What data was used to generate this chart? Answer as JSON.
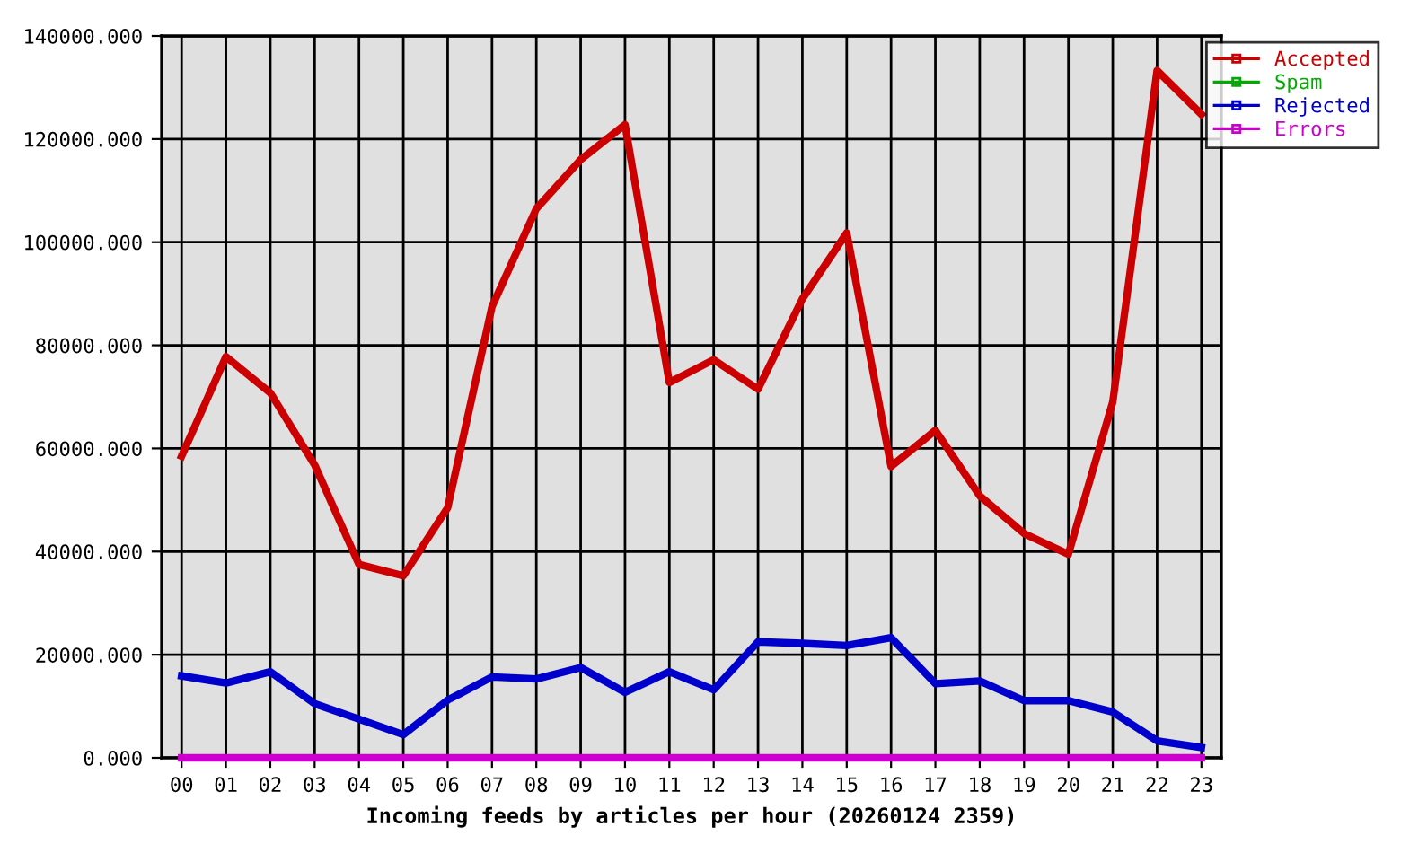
{
  "chart_data": {
    "type": "line",
    "xlabel": "Incoming feeds by articles per hour (20260124 2359)",
    "categories": [
      "00",
      "01",
      "02",
      "03",
      "04",
      "05",
      "06",
      "07",
      "08",
      "09",
      "10",
      "11",
      "12",
      "13",
      "14",
      "15",
      "16",
      "17",
      "18",
      "19",
      "20",
      "21",
      "22",
      "23"
    ],
    "series": [
      {
        "name": "Accepted",
        "color": "#cc0000",
        "values": [
          58500,
          77800,
          70800,
          56800,
          37500,
          35300,
          48500,
          87500,
          106500,
          116000,
          122800,
          72800,
          77200,
          71500,
          89000,
          101800,
          56500,
          63500,
          50800,
          43500,
          39500,
          69000,
          133300,
          124800
        ]
      },
      {
        "name": "Spam",
        "color": "#00aa00",
        "values": [
          null,
          null,
          null,
          null,
          null,
          null,
          null,
          null,
          null,
          null,
          null,
          null,
          null,
          null,
          null,
          null,
          null,
          null,
          null,
          null,
          null,
          null,
          null,
          null
        ]
      },
      {
        "name": "Rejected",
        "color": "#0000cc",
        "values": [
          15900,
          14500,
          16700,
          10500,
          7500,
          4500,
          11200,
          15700,
          15300,
          17500,
          12700,
          16700,
          13200,
          22500,
          22200,
          21800,
          23300,
          14400,
          14900,
          11100,
          11100,
          8900,
          3300,
          2000
        ]
      },
      {
        "name": "Errors",
        "color": "#cc00cc",
        "values": [
          0,
          0,
          0,
          0,
          0,
          0,
          0,
          0,
          0,
          0,
          0,
          0,
          0,
          0,
          0,
          0,
          0,
          0,
          0,
          0,
          0,
          0,
          0,
          0
        ]
      }
    ],
    "ylim": [
      0,
      140000
    ],
    "yticks": [
      {
        "value": 0,
        "label": "0.000"
      },
      {
        "value": 20000,
        "label": "20000.000"
      },
      {
        "value": 40000,
        "label": "40000.000"
      },
      {
        "value": 60000,
        "label": "60000.000"
      },
      {
        "value": 80000,
        "label": "80000.000"
      },
      {
        "value": 100000,
        "label": "100000.000"
      },
      {
        "value": 120000,
        "label": "120000.000"
      },
      {
        "value": 140000,
        "label": "140000.000"
      }
    ],
    "grid": true,
    "legend": "top right",
    "line_style": "solid"
  }
}
